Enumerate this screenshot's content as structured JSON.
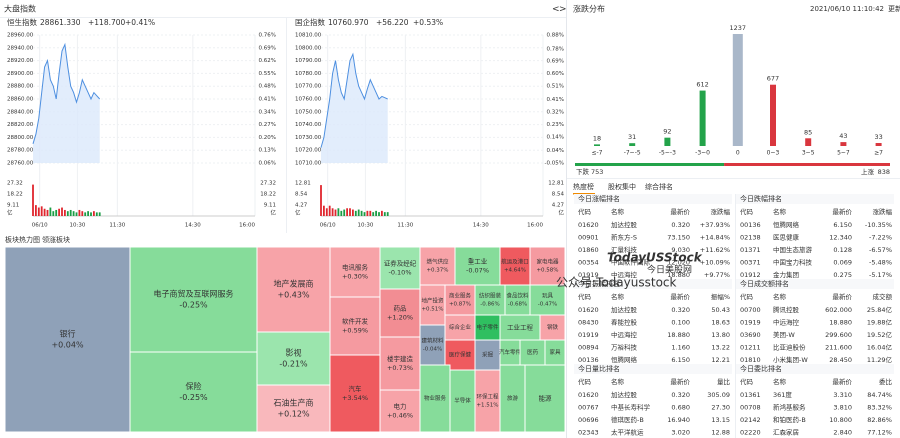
{
  "header": {
    "title": "大盘指数",
    "nav_prev": "<",
    "nav_next": ">"
  },
  "indices": [
    {
      "name": "恒生指数",
      "value": "28861.330",
      "change": "+118.700",
      "pct": "+0.41%",
      "ylim": [
        28760,
        28960
      ],
      "yticks": [
        {
          "value": 28960,
          "label": "28960.00"
        },
        {
          "value": 28940,
          "label": "28940.00"
        },
        {
          "value": 28920,
          "label": "28920.00"
        },
        {
          "value": 28900,
          "label": "28900.00"
        },
        {
          "value": 28880,
          "label": "28880.00"
        },
        {
          "value": 28860,
          "label": "28860.00"
        },
        {
          "value": 28840,
          "label": "28840.00"
        },
        {
          "value": 28820,
          "label": "28820.00"
        },
        {
          "value": 28800,
          "label": "28800.00"
        },
        {
          "value": 28780,
          "label": "28780.00"
        },
        {
          "value": 28760,
          "label": "28760.00"
        }
      ],
      "y2lim": [
        0.06,
        0.76
      ],
      "y2ticks": [
        {
          "value": 0.76,
          "label": "0.76%"
        },
        {
          "value": 0.69,
          "label": "0.69%"
        },
        {
          "value": 0.62,
          "label": "0.62%"
        },
        {
          "value": 0.55,
          "label": "0.55%"
        },
        {
          "value": 0.48,
          "label": "0.48%"
        },
        {
          "value": 0.41,
          "label": "0.41%"
        },
        {
          "value": 0.34,
          "label": "0.34%"
        },
        {
          "value": 0.27,
          "label": "0.27%"
        },
        {
          "value": 0.2,
          "label": "0.20%"
        },
        {
          "value": 0.13,
          "label": "0.13%"
        },
        {
          "value": 0.06,
          "label": "0.06%"
        }
      ],
      "prices": [
        28790,
        28805,
        28830,
        28870,
        28910,
        28920,
        28890,
        28880,
        28860,
        28900,
        28935,
        28945,
        28910,
        28880,
        28870,
        28855,
        28870,
        28890,
        28880,
        28870,
        28860,
        28870,
        28865,
        28860
      ],
      "vlim": [
        0,
        27.32
      ],
      "vticks": [
        27.32,
        18.22,
        9.11
      ],
      "vunit": "亿",
      "volumes": [
        26,
        9,
        7,
        8,
        6,
        5,
        7,
        4,
        5,
        6,
        7,
        5,
        4,
        5,
        4,
        3,
        5,
        4,
        3,
        4,
        3,
        4,
        3,
        3
      ],
      "times": [
        "06/10",
        "10:30",
        "11:30",
        "14:30",
        "16:00"
      ]
    },
    {
      "name": "国企指数",
      "value": "10760.970",
      "change": "+56.220",
      "pct": "+0.53%",
      "ylim": [
        10710,
        10810
      ],
      "yticks": [
        {
          "value": 10810,
          "label": "10810.00"
        },
        {
          "value": 10800,
          "label": "10800.00"
        },
        {
          "value": 10790,
          "label": "10790.00"
        },
        {
          "value": 10780,
          "label": "10780.00"
        },
        {
          "value": 10770,
          "label": "10770.00"
        },
        {
          "value": 10760,
          "label": "10760.00"
        },
        {
          "value": 10750,
          "label": "10750.00"
        },
        {
          "value": 10740,
          "label": "10740.00"
        },
        {
          "value": 10730,
          "label": "10730.00"
        },
        {
          "value": 10720,
          "label": "10720.00"
        },
        {
          "value": 10710,
          "label": "10710.00"
        }
      ],
      "y2lim": [
        -0.05,
        0.88
      ],
      "y2ticks": [
        {
          "value": 0.88,
          "label": "0.88%"
        },
        {
          "value": 0.78,
          "label": "0.78%"
        },
        {
          "value": 0.69,
          "label": "0.69%"
        },
        {
          "value": 0.6,
          "label": "0.60%"
        },
        {
          "value": 0.51,
          "label": "0.51%"
        },
        {
          "value": 0.41,
          "label": "0.41%"
        },
        {
          "value": 0.32,
          "label": "0.32%"
        },
        {
          "value": 0.23,
          "label": "0.23%"
        },
        {
          "value": 0.14,
          "label": "0.14%"
        },
        {
          "value": 0.04,
          "label": "0.04%"
        },
        {
          "value": -0.05,
          "label": "-0.05%"
        }
      ],
      "prices": [
        10722,
        10730,
        10745,
        10760,
        10780,
        10790,
        10775,
        10765,
        10760,
        10775,
        10790,
        10795,
        10780,
        10770,
        10765,
        10760,
        10768,
        10775,
        10770,
        10765,
        10760,
        10762,
        10761,
        10760
      ],
      "vlim": [
        0,
        12.81
      ],
      "vticks": [
        12.81,
        8.54,
        4.27
      ],
      "vunit": "亿",
      "volumes": [
        12,
        4,
        3,
        4,
        3,
        2.5,
        3,
        2,
        2.5,
        3,
        3,
        2.5,
        2,
        2.5,
        2,
        1.5,
        2,
        2,
        1.5,
        2,
        1.5,
        2,
        1.5,
        1.5
      ],
      "times": [
        "06/10",
        "10:30",
        "11:30",
        "14:30",
        "16:00"
      ]
    }
  ],
  "heatmap": {
    "tabs": [
      "板块热力图",
      "领涨板块"
    ],
    "blocks": [
      {
        "name": "银行",
        "pct": "+0.04%",
        "color": "#8fa1b8"
      },
      {
        "name": "电子商贸及互联网服务",
        "pct": "-0.25%",
        "color": "#86dc9a"
      },
      {
        "name": "保险",
        "pct": "-0.25%",
        "color": "#86dc9a"
      },
      {
        "name": "地产发展商",
        "pct": "+0.43%",
        "color": "#f7a3a8"
      },
      {
        "name": "影视",
        "pct": "-0.21%",
        "color": "#9be5ad"
      },
      {
        "name": "石油生产商",
        "pct": "+0.12%",
        "color": "#f9b8bc"
      },
      {
        "name": "电讯服务",
        "pct": "+0.30%",
        "color": "#f7a3a8"
      },
      {
        "name": "软件开发",
        "pct": "+0.59%",
        "color": "#f59aa0"
      },
      {
        "name": "汽车",
        "pct": "+3.54%",
        "color": "#ef5a5f"
      },
      {
        "name": "证券及经纪",
        "pct": "-0.10%",
        "color": "#9be5ad"
      },
      {
        "name": "药品",
        "pct": "+1.20%",
        "color": "#f28d93"
      },
      {
        "name": "楼宇建造",
        "pct": "+0.73%",
        "color": "#f59aa0"
      },
      {
        "name": "电力",
        "pct": "+0.46%",
        "color": "#f7a3a8"
      },
      {
        "name": "燃气供应",
        "pct": "+0.37%",
        "color": "#f7a3a8"
      },
      {
        "name": "重工业",
        "pct": "-0.07%",
        "color": "#86dc9a"
      },
      {
        "name": "航运及港口",
        "pct": "+4.64%",
        "color": "#ef5a5f"
      },
      {
        "name": "家电电器",
        "pct": "+0.58%",
        "color": "#f59aa0"
      },
      {
        "name": "地产投资",
        "pct": "+0.51%",
        "color": "#f7a3a8"
      },
      {
        "name": "商业服务",
        "pct": "+0.87%",
        "color": "#f59aa0"
      },
      {
        "name": "纺织服装",
        "pct": "-0.86%",
        "color": "#86dc9a"
      },
      {
        "name": "食品饮料",
        "pct": "-0.68%",
        "color": "#86dc9a"
      },
      {
        "name": "玩具",
        "pct": "-0.47%",
        "color": "#86dc9a"
      },
      {
        "name": "综合企业",
        "color": "#f7a3a8"
      },
      {
        "name": "电子零件",
        "color": "#2fbf60"
      },
      {
        "name": "工业工程",
        "color": "#86dc9a"
      },
      {
        "name": "钢铁",
        "color": "#f7a3a8"
      },
      {
        "name": "建筑材料",
        "pct": "-0.04%",
        "color": "#8fa1b8"
      },
      {
        "name": "医疗保健",
        "color": "#ef5a5f"
      },
      {
        "name": "采掘",
        "color": "#8fa1b8"
      },
      {
        "name": "汽车零件",
        "color": "#86dc9a"
      },
      {
        "name": "医药",
        "color": "#86dc9a"
      },
      {
        "name": "家具",
        "color": "#86dc9a"
      },
      {
        "name": "物业服务",
        "color": "#86dc9a"
      },
      {
        "name": "半导体",
        "color": "#86dc9a"
      },
      {
        "name": "环保工程",
        "pct": "+1.51%",
        "color": "#f7a3a8"
      },
      {
        "name": "旅游",
        "color": "#86dc9a"
      },
      {
        "name": "能源",
        "color": "#86dc9a"
      }
    ]
  },
  "distribution": {
    "title": "涨跌分布",
    "datetime": "2021/06/10 11:10:42",
    "refresh": "更新",
    "categories": [
      "≤-7",
      "-7~-5",
      "-5~-3",
      "-3~0",
      "0",
      "0~3",
      "3~5",
      "5~7",
      "≥7"
    ],
    "values": [
      18,
      31,
      92,
      612,
      1237,
      677,
      85,
      43,
      33
    ],
    "colors": [
      "#23a34a",
      "#23a34a",
      "#23a34a",
      "#23a34a",
      "#a9b7c9",
      "#d9363e",
      "#d9363e",
      "#d9363e",
      "#d9363e"
    ],
    "down": {
      "label": "下跌",
      "value": 753,
      "color": "#23a34a"
    },
    "up": {
      "label": "上涨",
      "value": 838,
      "color": "#d9363e"
    }
  },
  "tabs": [
    "热度榜",
    "股权集中",
    "综合排名"
  ],
  "tables": [
    {
      "title": "今日涨幅排名",
      "columns": [
        "代码",
        "名称",
        "最新价",
        "涨跌幅"
      ],
      "colors": [
        "#e0262e",
        "#e0262e",
        "#e0262e",
        "#e0262e",
        "#e0262e"
      ],
      "rows": [
        [
          "01620",
          "加达控股",
          "0.320",
          "+37.93%"
        ],
        [
          "00901",
          "新东方-S",
          "73.150",
          "+14.84%"
        ],
        [
          "01860",
          "汇量科技",
          "9.030",
          "+11.62%"
        ],
        [
          "00354",
          "中国软件国际",
          "12.020",
          "+10.09%"
        ],
        [
          "01919",
          "中远海控",
          "18.880",
          "+9.77%"
        ]
      ]
    },
    {
      "title": "今日跌幅排名",
      "columns": [
        "代码",
        "名称",
        "最新价",
        "涨跌幅"
      ],
      "colors": [
        "#1a9d45",
        "#1a9d45",
        "#1a9d45",
        "#1a9d45",
        "#1a9d45"
      ],
      "rows": [
        [
          "00136",
          "恒腾网络",
          "6.150",
          "-10.35%"
        ],
        [
          "02138",
          "医思健康",
          "12.340",
          "-7.22%"
        ],
        [
          "01371",
          "中国生态旅游",
          "0.128",
          "-6.57%"
        ],
        [
          "00371",
          "中国宝力科技",
          "0.069",
          "-5.48%"
        ],
        [
          "01912",
          "金力集团",
          "0.275",
          "-5.17%"
        ]
      ]
    },
    {
      "title": "今日振幅排名",
      "columns": [
        "代码",
        "名称",
        "最新价",
        "振幅%"
      ],
      "colors": [
        "#e0262e",
        "#1a9d45",
        "#e0262e",
        "#e0262e",
        "#1a9d45"
      ],
      "rows": [
        [
          "01620",
          "加达控股",
          "0.320",
          "50.43"
        ],
        [
          "08430",
          "春能控股",
          "0.100",
          "18.63"
        ],
        [
          "01919",
          "中远海控",
          "18.880",
          "13.80"
        ],
        [
          "00894",
          "万裕科技",
          "1.160",
          "13.22"
        ],
        [
          "00136",
          "恒腾网络",
          "6.150",
          "12.21"
        ]
      ]
    },
    {
      "title": "今日成交额排名",
      "columns": [
        "代码",
        "名称",
        "最新价",
        "成交额"
      ],
      "colors": [
        "#1a9d45",
        "#e0262e",
        "#e0262e",
        "#e0262e",
        "#1a9d45"
      ],
      "rows": [
        [
          "00700",
          "腾讯控股",
          "602.000",
          "25.84亿"
        ],
        [
          "01919",
          "中远海控",
          "18.880",
          "19.88亿"
        ],
        [
          "03690",
          "美团-W",
          "299.600",
          "19.52亿"
        ],
        [
          "01211",
          "比亚迪股份",
          "211.600",
          "16.04亿"
        ],
        [
          "01810",
          "小米集团-W",
          "28.450",
          "11.29亿"
        ]
      ]
    },
    {
      "title": "今日量比排名",
      "columns": [
        "代码",
        "名称",
        "最新价",
        "量比"
      ],
      "colors": [
        "#e0262e",
        "#e0262e",
        "#e0262e",
        "#e0262e"
      ],
      "rows": [
        [
          "01620",
          "加达控股",
          "0.320",
          "305.09"
        ],
        [
          "00767",
          "中基长寿科学",
          "0.680",
          "27.30"
        ],
        [
          "00696",
          "德琪医药-B",
          "16.940",
          "13.15"
        ],
        [
          "02343",
          "太平洋航运",
          "3.020",
          "12.88"
        ]
      ]
    },
    {
      "title": "今日委比排名",
      "columns": [
        "代码",
        "名称",
        "最新价",
        "委比"
      ],
      "colors": [
        "#e0262e",
        "#e0262e",
        "#1a9d45",
        "#e0262e"
      ],
      "rows": [
        [
          "01361",
          "361度",
          "3.310",
          "84.74%"
        ],
        [
          "00708",
          "新鸿基服务",
          "3.810",
          "83.32%"
        ],
        [
          "02142",
          "和铂医药-B",
          "10.800",
          "82.86%"
        ],
        [
          "02220",
          "汇森家居",
          "2.840",
          "77.12%"
        ]
      ]
    }
  ],
  "watermark": {
    "brand": "TodayUSStock",
    "cn": "今日美股网",
    "account": "公众号:Todayusstock"
  }
}
